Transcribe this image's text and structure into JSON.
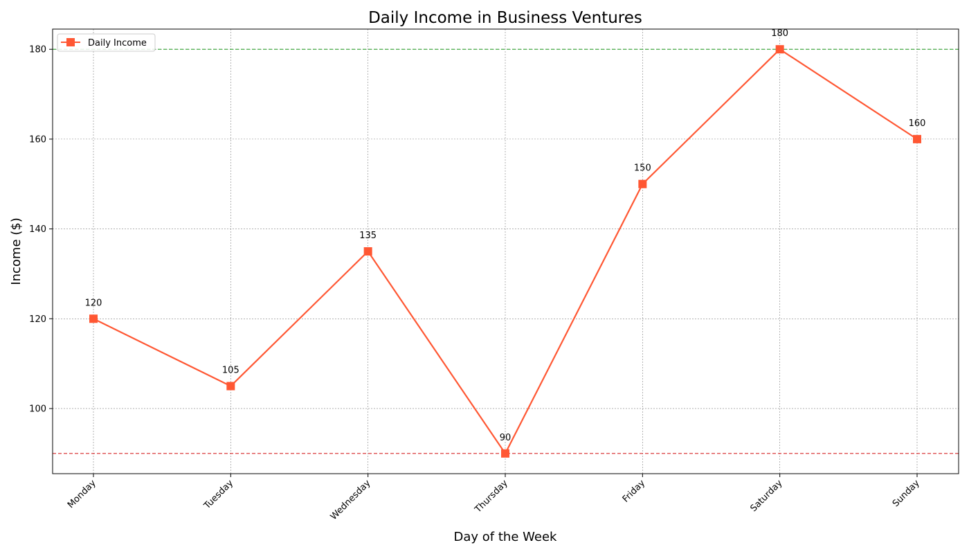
{
  "chart_data": {
    "type": "line",
    "title": "Daily Income in Business Ventures",
    "xlabel": "Day of the Week",
    "ylabel": "Income ($)",
    "categories": [
      "Monday",
      "Tuesday",
      "Wednesday",
      "Thursday",
      "Friday",
      "Saturday",
      "Sunday"
    ],
    "series": [
      {
        "name": "Daily Income",
        "values": [
          120,
          105,
          135,
          90,
          150,
          180,
          160
        ],
        "color": "#ff5733",
        "marker": "square",
        "data_labels": [
          "120",
          "105",
          "135",
          "90",
          "150",
          "180",
          "160"
        ]
      }
    ],
    "ylim": [
      85.5,
      184.5
    ],
    "yticks": [
      100,
      120,
      140,
      160,
      180
    ],
    "ytick_labels": [
      "100",
      "120",
      "140",
      "160",
      "180"
    ],
    "reference_lines": [
      {
        "value": 180,
        "color": "#2ca02c",
        "style": "dashed"
      },
      {
        "value": 90,
        "color": "#d62728",
        "style": "dashed"
      }
    ],
    "grid": true,
    "grid_color": "#808080",
    "legend_position": "top-left",
    "xtick_rotation": 45
  }
}
